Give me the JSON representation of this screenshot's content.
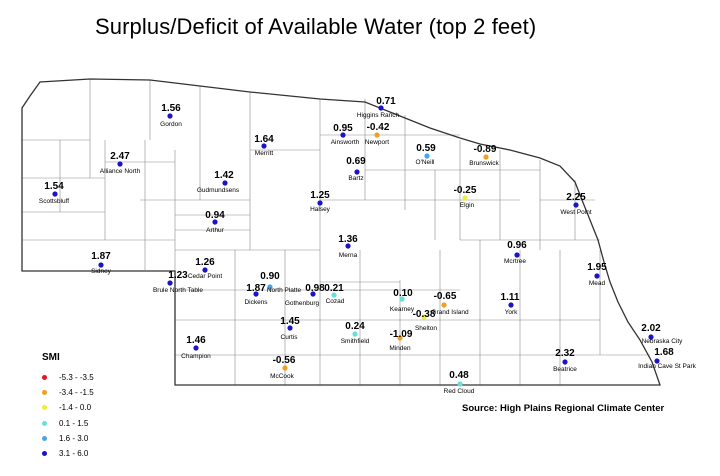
{
  "title": "Surplus/Deficit of Available Water (top 2 feet)",
  "source": "Source: High Plains Regional Climate Center",
  "legend": {
    "title": "SMI",
    "items": [
      {
        "label": "-5.3 - -3.5",
        "color": "#e8141c"
      },
      {
        "label": "-3.4 - -1.5",
        "color": "#f0a020"
      },
      {
        "label": "-1.4 - 0.0",
        "color": "#eded3a"
      },
      {
        "label": "0.1 - 1.5",
        "color": "#66e0d8"
      },
      {
        "label": "1.6 - 3.0",
        "color": "#4aa3e8"
      },
      {
        "label": "3.1 - 6.0",
        "color": "#1a14c8"
      }
    ]
  },
  "stations": [
    {
      "name": "Gordon",
      "value": "1.56",
      "color": "#1a14c8"
    },
    {
      "name": "Higgins Ranch",
      "value": "0.71",
      "color": "#1a14c8"
    },
    {
      "name": "Ainsworth",
      "value": "0.95",
      "color": "#1a14c8"
    },
    {
      "name": "Newport",
      "value": "-0.42",
      "color": "#f0a020"
    },
    {
      "name": "Merritt",
      "value": "1.64",
      "color": "#1a14c8"
    },
    {
      "name": "O'Neill",
      "value": "0.59",
      "color": "#4aa3e8"
    },
    {
      "name": "Brunswick",
      "value": "-0.89",
      "color": "#f0a020"
    },
    {
      "name": "Alliance North",
      "value": "2.47",
      "color": "#1a14c8"
    },
    {
      "name": "Bartz",
      "value": "0.69",
      "color": "#1a14c8"
    },
    {
      "name": "Gudmundsens",
      "value": "1.42",
      "color": "#1a14c8"
    },
    {
      "name": "Scottsbluff",
      "value": "1.54",
      "color": "#1a14c8"
    },
    {
      "name": "Halsey",
      "value": "1.25",
      "color": "#1a14c8"
    },
    {
      "name": "Elgin",
      "value": "-0.25",
      "color": "#eded3a"
    },
    {
      "name": "West Point",
      "value": "2.25",
      "color": "#1a14c8"
    },
    {
      "name": "Arthur",
      "value": "0.94",
      "color": "#1a14c8"
    },
    {
      "name": "Merna",
      "value": "1.36",
      "color": "#1a14c8"
    },
    {
      "name": "Mcrtree",
      "value": "0.96",
      "color": "#1a14c8"
    },
    {
      "name": "Sidney",
      "value": "1.87",
      "color": "#1a14c8"
    },
    {
      "name": "Cedar Point",
      "value": "1.26",
      "color": "#1a14c8"
    },
    {
      "name": "Mead",
      "value": "1.95",
      "color": "#1a14c8"
    },
    {
      "name": "Brule North Table",
      "value": "1.23",
      "color": "#1a14c8"
    },
    {
      "name": "North Platte",
      "value": "0.90",
      "color": "#4aa3e8"
    },
    {
      "name": "Dickens",
      "value": "1.87",
      "color": "#1a14c8"
    },
    {
      "name": "Gothenburg",
      "value": "0.98",
      "color": "#1a14c8"
    },
    {
      "name": "Cozad",
      "value": "0.21",
      "color": "#66e0d8"
    },
    {
      "name": "Kearney",
      "value": "0.10",
      "color": "#66e0d8"
    },
    {
      "name": "Grand Island",
      "value": "-0.65",
      "color": "#f0a020"
    },
    {
      "name": "York",
      "value": "1.11",
      "color": "#1a14c8"
    },
    {
      "name": "Shelton",
      "value": "-0.38",
      "color": "#eded3a"
    },
    {
      "name": "Curtis",
      "value": "1.45",
      "color": "#1a14c8"
    },
    {
      "name": "Smithfield",
      "value": "0.24",
      "color": "#66e0d8"
    },
    {
      "name": "Minden",
      "value": "-1.09",
      "color": "#f0a020"
    },
    {
      "name": "Champion",
      "value": "1.46",
      "color": "#1a14c8"
    },
    {
      "name": "Nebraska City",
      "value": "2.02",
      "color": "#1a14c8"
    },
    {
      "name": "Indian Cave St Park",
      "value": "1.68",
      "color": "#1a14c8"
    },
    {
      "name": "Beatrice",
      "value": "2.32",
      "color": "#1a14c8"
    },
    {
      "name": "McCook",
      "value": "-0.56",
      "color": "#f0a020"
    },
    {
      "name": "Red Cloud",
      "value": "0.48",
      "color": "#66e0d8"
    }
  ]
}
